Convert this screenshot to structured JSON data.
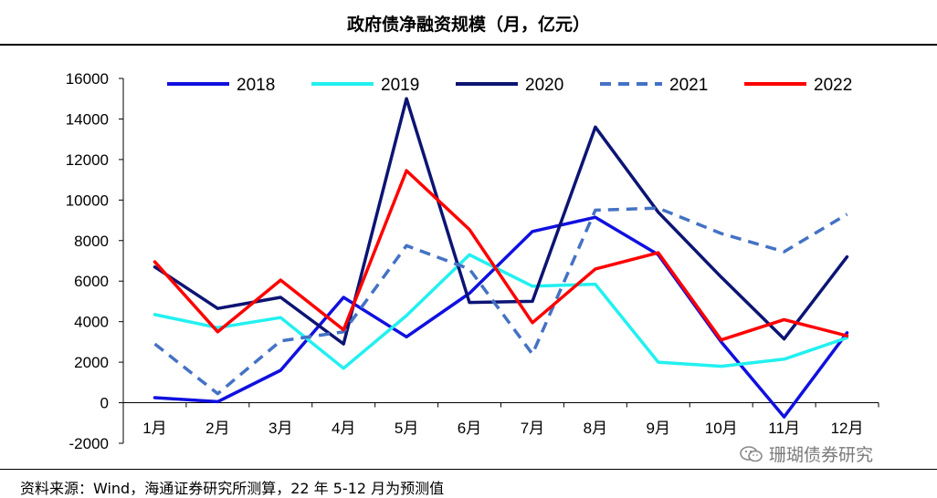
{
  "title": "政府债净融资规模（月，亿元）",
  "source": "资料来源：Wind，海通证券研究所测算，22 年 5-12 月为预测值",
  "watermark": {
    "text": "珊瑚债券研究",
    "icon": "wechat-icon"
  },
  "chart_data": {
    "type": "line",
    "title": "政府债净融资规模（月，亿元）",
    "xlabel": "",
    "ylabel": "",
    "ylim": [
      -2000,
      16000
    ],
    "yticks": [
      -2000,
      0,
      2000,
      4000,
      6000,
      8000,
      10000,
      12000,
      14000,
      16000
    ],
    "categories": [
      "1月",
      "2月",
      "3月",
      "4月",
      "5月",
      "6月",
      "7月",
      "8月",
      "9月",
      "10月",
      "11月",
      "12月"
    ],
    "legend_position": "top",
    "series": [
      {
        "name": "2018",
        "color": "#1010e0",
        "dash": "solid",
        "values": [
          250,
          50,
          1600,
          5200,
          3250,
          5400,
          8450,
          9150,
          7300,
          3000,
          -700,
          3450
        ]
      },
      {
        "name": "2019",
        "color": "#22f0f0",
        "dash": "solid",
        "values": [
          4350,
          3700,
          4200,
          1700,
          4300,
          7300,
          5750,
          5850,
          2000,
          1800,
          2150,
          3200
        ]
      },
      {
        "name": "2020",
        "color": "#0c1473",
        "dash": "solid",
        "values": [
          6700,
          4650,
          5200,
          2900,
          15000,
          4950,
          5000,
          13600,
          9400,
          6200,
          3150,
          7200
        ]
      },
      {
        "name": "2021",
        "color": "#4472c4",
        "dash": "dashed",
        "values": [
          2900,
          450,
          3050,
          3500,
          7750,
          6600,
          2400,
          9500,
          9600,
          8350,
          7450,
          9300
        ]
      },
      {
        "name": "2022",
        "color": "#ff0000",
        "dash": "solid",
        "values": [
          6950,
          3500,
          6050,
          3600,
          11450,
          8550,
          3950,
          6600,
          7400,
          3100,
          4100,
          3300
        ]
      }
    ]
  }
}
